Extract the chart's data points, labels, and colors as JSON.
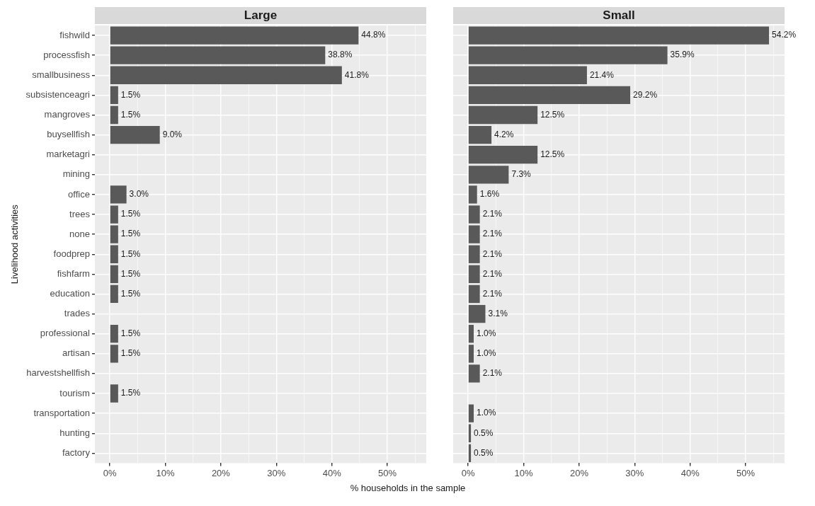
{
  "chart_data": [
    {
      "type": "bar",
      "orientation": "horizontal",
      "title": "Large",
      "xlabel": "% households in the sample",
      "ylabel": "Livelihood activities",
      "categories": [
        "fishwild",
        "processfish",
        "smallbusiness",
        "subsistenceagri",
        "mangroves",
        "buysellfish",
        "marketagri",
        "mining",
        "office",
        "trees",
        "none",
        "foodprep",
        "fishfarm",
        "education",
        "trades",
        "professional",
        "artisan",
        "harvestshellfish",
        "tourism",
        "transportation",
        "hunting",
        "factory"
      ],
      "values": [
        44.8,
        38.8,
        41.8,
        1.5,
        1.5,
        9.0,
        null,
        null,
        3.0,
        1.5,
        1.5,
        1.5,
        1.5,
        1.5,
        null,
        1.5,
        1.5,
        null,
        1.5,
        null,
        null,
        null
      ],
      "value_labels": [
        "44.8%",
        "38.8%",
        "41.8%",
        "1.5%",
        "1.5%",
        "9.0%",
        null,
        null,
        "3.0%",
        "1.5%",
        "1.5%",
        "1.5%",
        "1.5%",
        "1.5%",
        null,
        "1.5%",
        "1.5%",
        null,
        "1.5%",
        null,
        null,
        null
      ],
      "color": "#595959",
      "xlim": [
        -2.7,
        57
      ],
      "xticks": [
        {
          "value": 0,
          "label": "0%"
        },
        {
          "value": 5,
          "label": null
        },
        {
          "value": 10,
          "label": "10%"
        },
        {
          "value": 15,
          "label": null
        },
        {
          "value": 20,
          "label": "20%"
        },
        {
          "value": 25,
          "label": null
        },
        {
          "value": 30,
          "label": "30%"
        },
        {
          "value": 35,
          "label": null
        },
        {
          "value": 40,
          "label": "40%"
        },
        {
          "value": 45,
          "label": null
        },
        {
          "value": 50,
          "label": "50%"
        },
        {
          "value": 55,
          "label": null
        }
      ],
      "grid": true,
      "legend": false
    },
    {
      "type": "bar",
      "orientation": "horizontal",
      "title": "Small",
      "tick_labels": "x",
      "categories": [
        null,
        null,
        null,
        null,
        null,
        null,
        null,
        null,
        null,
        null,
        null,
        null,
        null,
        null,
        null,
        null,
        null,
        null,
        null,
        null,
        null,
        null
      ],
      "values": [
        54.2,
        35.9,
        21.4,
        29.2,
        12.5,
        4.2,
        12.5,
        7.3,
        1.6,
        2.1,
        2.1,
        2.1,
        2.1,
        2.1,
        3.1,
        1.0,
        1.0,
        2.1,
        null,
        1.0,
        0.5,
        0.5
      ],
      "value_labels": [
        "54.2%",
        "35.9%",
        "21.4%",
        "29.2%",
        "12.5%",
        "4.2%",
        "12.5%",
        "7.3%",
        "1.6%",
        "2.1%",
        "2.1%",
        "2.1%",
        "2.1%",
        "2.1%",
        "3.1%",
        "1.0%",
        "1.0%",
        "2.1%",
        null,
        "1.0%",
        "0.5%",
        "0.5%"
      ],
      "color": "#595959",
      "xlim": [
        -2.7,
        57
      ],
      "xticks": [
        {
          "value": 0,
          "label": "0%"
        },
        {
          "value": 5,
          "label": null
        },
        {
          "value": 10,
          "label": "10%"
        },
        {
          "value": 15,
          "label": null
        },
        {
          "value": 20,
          "label": "20%"
        },
        {
          "value": 25,
          "label": null
        },
        {
          "value": 30,
          "label": "30%"
        },
        {
          "value": 35,
          "label": null
        },
        {
          "value": 40,
          "label": "40%"
        },
        {
          "value": 45,
          "label": null
        },
        {
          "value": 50,
          "label": "50%"
        },
        {
          "value": 55,
          "label": null
        }
      ],
      "grid": true,
      "legend": false
    }
  ]
}
